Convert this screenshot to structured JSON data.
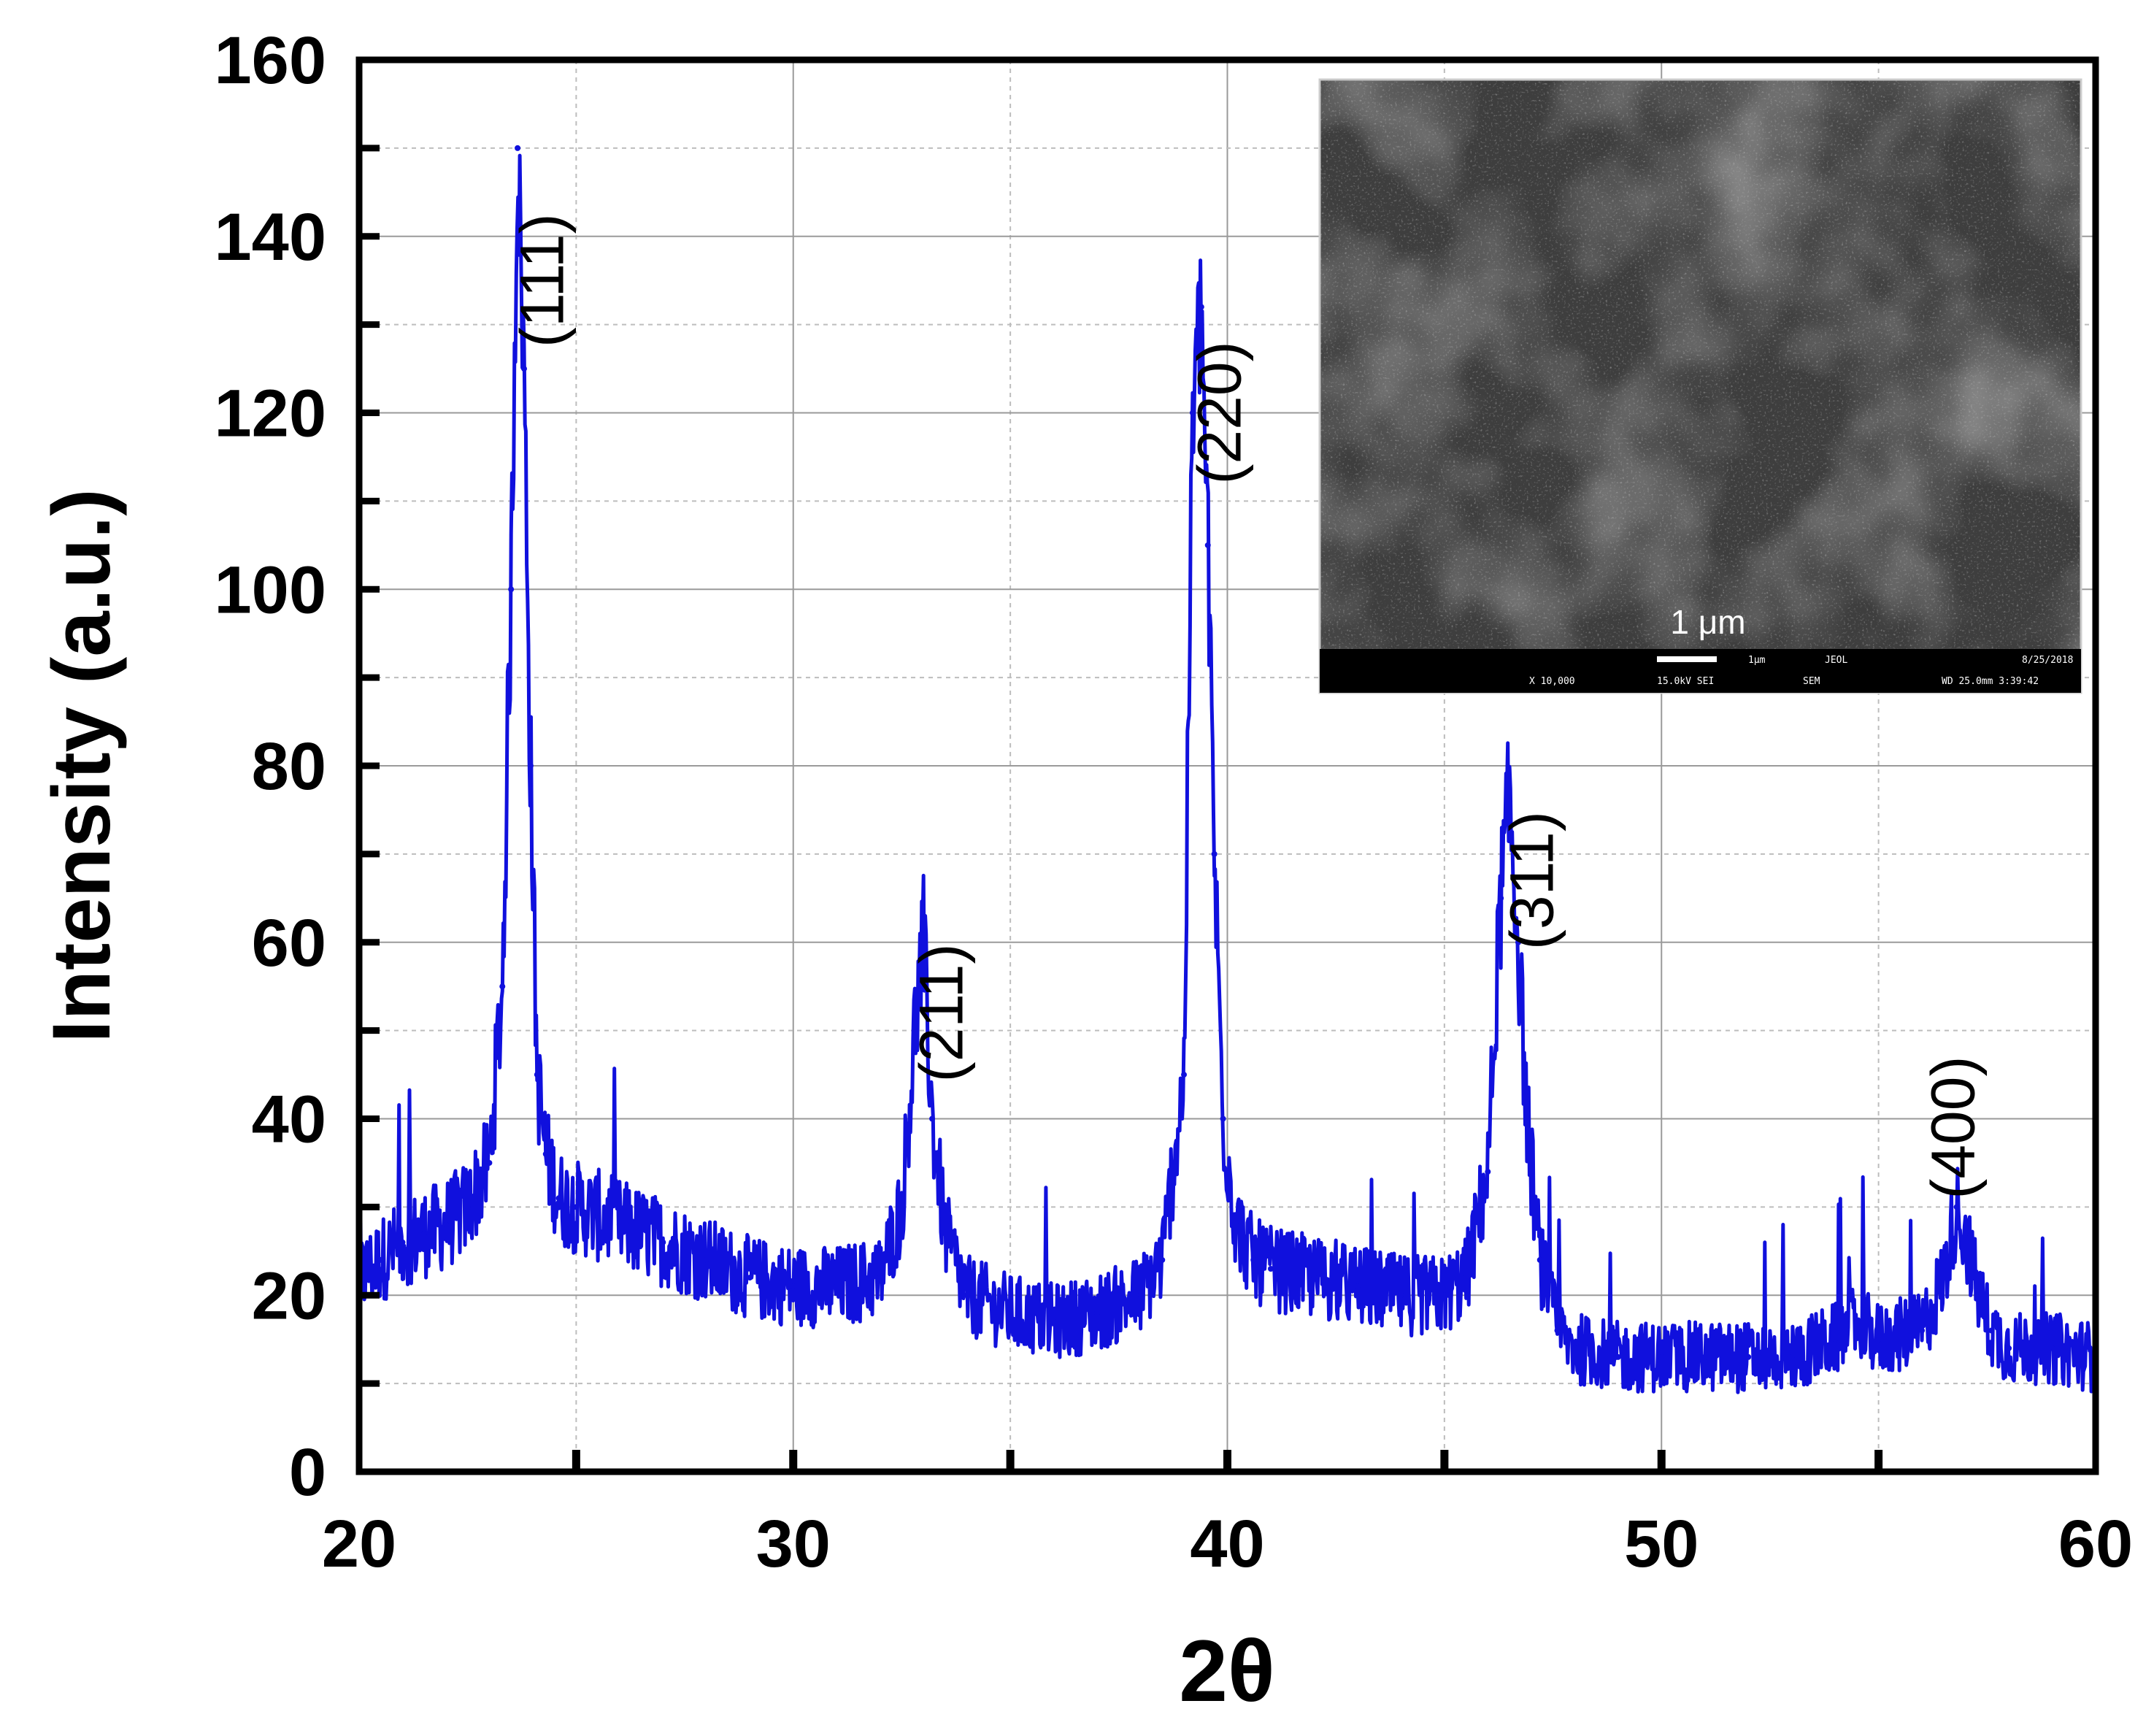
{
  "chart_data": {
    "type": "line",
    "xlabel": "2θ",
    "ylabel": "Intensity (a.u.)",
    "xlim": [
      20,
      60
    ],
    "ylim": [
      0,
      160
    ],
    "x_ticks": [
      "20",
      "30",
      "40",
      "50",
      "60"
    ],
    "y_ticks": [
      "0",
      "20",
      "40",
      "60",
      "80",
      "100",
      "120",
      "140",
      "160"
    ],
    "grid": true,
    "line_color": "#1010dd",
    "series": [
      {
        "x": [
          20,
          20.5,
          21,
          21.5,
          22,
          22.5,
          23,
          23.3,
          23.5,
          23.65,
          23.8,
          23.95,
          24.1,
          24.3,
          24.6,
          25,
          25.5,
          26,
          27,
          28,
          29,
          30,
          31,
          32,
          32.5,
          32.8,
          33,
          33.2,
          33.5,
          34,
          35,
          36,
          37,
          38,
          38.5,
          39,
          39.2,
          39.4,
          39.55,
          39.7,
          39.9,
          40.2,
          40.6,
          41,
          42,
          43,
          44,
          45,
          45.5,
          46,
          46.3,
          46.5,
          46.7,
          46.9,
          47.2,
          47.6,
          48,
          49,
          50,
          51,
          52,
          53,
          54,
          54.5,
          55,
          56,
          56.5,
          56.8,
          57.0,
          57.3,
          57.6,
          58,
          59,
          60
        ],
        "y": [
          22,
          24,
          26,
          27,
          28,
          30,
          35,
          55,
          100,
          150,
          125,
          80,
          45,
          36,
          31,
          30,
          29,
          28,
          26,
          24,
          22,
          21,
          21,
          22,
          30,
          50,
          60,
          40,
          27,
          20,
          18,
          17,
          18,
          20,
          24,
          45,
          120,
          132,
          105,
          70,
          40,
          28,
          24,
          23,
          22,
          21,
          20,
          20,
          22,
          34,
          65,
          76,
          60,
          40,
          24,
          16,
          14,
          13,
          13,
          13,
          13,
          13,
          15,
          17,
          15,
          16,
          22,
          30,
          27,
          20,
          16,
          14,
          14,
          13
        ]
      }
    ],
    "annotations": [
      {
        "text": "(111)",
        "x": 24.7,
        "y": 135
      },
      {
        "text": "(211)",
        "x": 33.9,
        "y": 52
      },
      {
        "text": "(220)",
        "x": 40.3,
        "y": 120
      },
      {
        "text": "(311)",
        "x": 47.5,
        "y": 67
      },
      {
        "text": "(400)",
        "x": 57.2,
        "y": 39
      }
    ]
  },
  "inset": {
    "scale_bar_label": "1 μm",
    "footer_row1": [
      "1μm",
      "JEOL",
      "8/25/2018"
    ],
    "footer_row2": [
      "X 10,000",
      "15.0kV SEI",
      "SEM",
      "WD 25.0mm 3:39:42"
    ]
  }
}
